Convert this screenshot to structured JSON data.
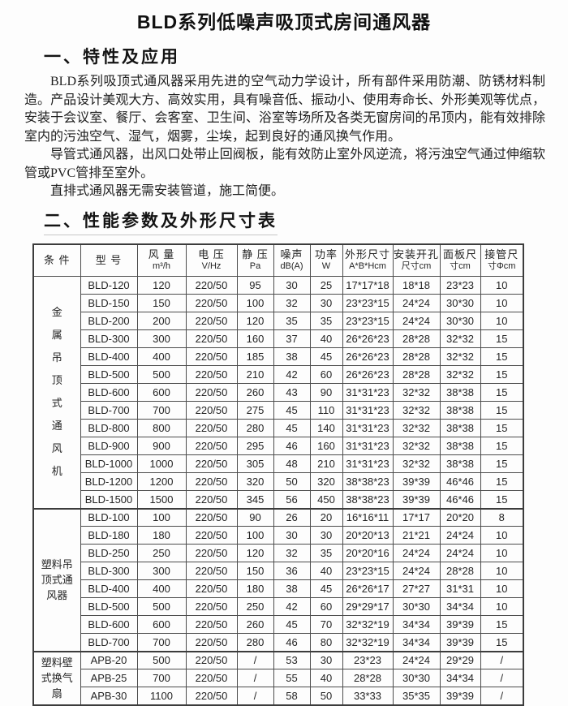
{
  "doc": {
    "title": "BLD系列低噪声吸顶式房间通风器",
    "section1": {
      "heading": "一、特性及应用",
      "paragraphs": [
        "BLD系列吸顶式通风器采用先进的空气动力学设计，所有部件采用防潮、防锈材料制造。产品设计美观大方、高效实用，具有噪音低、振动小、使用寿命长、外形美观等优点，安装于会议室、餐厅、会客室、卫生间、浴室等场所及各类无窗房间的吊顶内，能有效排除室内的污浊空气、湿气，烟雾，尘埃，起到良好的通风换气作用。",
        "导管式通风器，出风口处带止回阀板，能有效防止室外风逆流，将污浊空气通过伸缩软管或PVC管排至室外。",
        "直排式通风器无需安装管道，施工简便。"
      ]
    },
    "section2": {
      "heading": "二、性能参数及外形尺寸表",
      "table": {
        "headers": [
          {
            "line1": "条 件",
            "line2": ""
          },
          {
            "line1": "型 号",
            "line2": ""
          },
          {
            "line1": "风 量",
            "line2": "m³/h"
          },
          {
            "line1": "电 压",
            "line2": "V/Hz"
          },
          {
            "line1": "静 压",
            "line2": "Pa"
          },
          {
            "line1": "噪声",
            "line2": "dB(A)"
          },
          {
            "line1": "功率",
            "line2": "W"
          },
          {
            "line1": "外形尺寸",
            "line2": "A*B*Hcm"
          },
          {
            "line1": "安装开孔",
            "line2": "尺寸cm"
          },
          {
            "line1": "面板尺",
            "line2": "寸cm"
          },
          {
            "line1": "接管尺",
            "line2": "寸Φcm"
          }
        ],
        "groups": [
          {
            "condition": "金属吊顶式通风机",
            "condition_lines": [
              "金",
              "属",
              "吊",
              "顶",
              "式",
              "通",
              "风",
              "机"
            ],
            "rows": [
              [
                "BLD-120",
                "120",
                "220/50",
                "95",
                "30",
                "25",
                "17*17*18",
                "18*18",
                "23*23",
                "10"
              ],
              [
                "BLD-150",
                "150",
                "220/50",
                "100",
                "32",
                "30",
                "23*23*15",
                "24*24",
                "30*30",
                "10"
              ],
              [
                "BLD-200",
                "200",
                "220/50",
                "120",
                "35",
                "35",
                "23*23*15",
                "24*24",
                "30*30",
                "10"
              ],
              [
                "BLD-300",
                "300",
                "220/50",
                "160",
                "37",
                "40",
                "26*26*23",
                "28*28",
                "32*32",
                "15"
              ],
              [
                "BLD-400",
                "400",
                "220/50",
                "185",
                "38",
                "45",
                "26*26*23",
                "28*28",
                "32*32",
                "15"
              ],
              [
                "BLD-500",
                "500",
                "220/50",
                "210",
                "42",
                "60",
                "26*26*23",
                "28*28",
                "32*32",
                "15"
              ],
              [
                "BLD-600",
                "600",
                "220/50",
                "260",
                "43",
                "90",
                "31*31*23",
                "32*32",
                "38*38",
                "15"
              ],
              [
                "BLD-700",
                "700",
                "220/50",
                "275",
                "45",
                "110",
                "31*31*23",
                "32*32",
                "38*38",
                "15"
              ],
              [
                "BLD-800",
                "800",
                "220/50",
                "280",
                "45",
                "140",
                "31*31*23",
                "32*32",
                "38*38",
                "15"
              ],
              [
                "BLD-900",
                "900",
                "220/50",
                "295",
                "46",
                "160",
                "31*31*23",
                "32*32",
                "38*38",
                "15"
              ],
              [
                "BLD-1000",
                "1000",
                "220/50",
                "305",
                "48",
                "210",
                "31*31*23",
                "32*32",
                "38*38",
                "15"
              ],
              [
                "BLD-1200",
                "1200",
                "220/50",
                "320",
                "50",
                "320",
                "38*38*23",
                "39*39",
                "46*46",
                "15"
              ],
              [
                "BLD-1500",
                "1500",
                "220/50",
                "345",
                "56",
                "450",
                "38*38*23",
                "39*39",
                "46*46",
                "15"
              ]
            ]
          },
          {
            "condition": "塑料吊顶式通风器",
            "condition_lines": [
              "塑料吊",
              "顶式通",
              "风器"
            ],
            "rows": [
              [
                "BLD-100",
                "100",
                "220/50",
                "90",
                "26",
                "20",
                "16*16*11",
                "17*17",
                "20*20",
                "8"
              ],
              [
                "BLD-180",
                "180",
                "220/50",
                "100",
                "30",
                "30",
                "20*20*13",
                "21*21",
                "24*24",
                "10"
              ],
              [
                "BLD-250",
                "250",
                "220/50",
                "120",
                "32",
                "35",
                "20*20*16",
                "24*24",
                "24*24",
                "10"
              ],
              [
                "BLD-300",
                "300",
                "220/50",
                "150",
                "36",
                "40",
                "23*23*15",
                "24*24",
                "28*28",
                "10"
              ],
              [
                "BLD-400",
                "400",
                "220/50",
                "180",
                "38",
                "45",
                "26*26*17",
                "27*27",
                "31*31",
                "10"
              ],
              [
                "BLD-500",
                "500",
                "220/50",
                "250",
                "42",
                "60",
                "29*29*17",
                "30*30",
                "34*34",
                "10"
              ],
              [
                "BLD-600",
                "600",
                "220/50",
                "260",
                "45",
                "70",
                "32*32*19",
                "34*34",
                "39*39",
                "15"
              ],
              [
                "BLD-700",
                "700",
                "220/50",
                "280",
                "46",
                "80",
                "32*32*19",
                "34*34",
                "39*39",
                "15"
              ]
            ]
          },
          {
            "condition": "塑料壁式换气扇",
            "condition_lines": [
              "塑料壁",
              "式换气",
              "扇"
            ],
            "rows": [
              [
                "APB-20",
                "500",
                "220/50",
                "/",
                "53",
                "30",
                "23*23",
                "24*24",
                "29*29",
                "/"
              ],
              [
                "APB-25",
                "700",
                "220/50",
                "/",
                "55",
                "40",
                "28*28",
                "30*30",
                "34*34",
                "/"
              ],
              [
                "APB-30",
                "1100",
                "220/50",
                "/",
                "58",
                "50",
                "33*33",
                "35*35",
                "39*39",
                "/"
              ]
            ]
          }
        ]
      }
    }
  }
}
